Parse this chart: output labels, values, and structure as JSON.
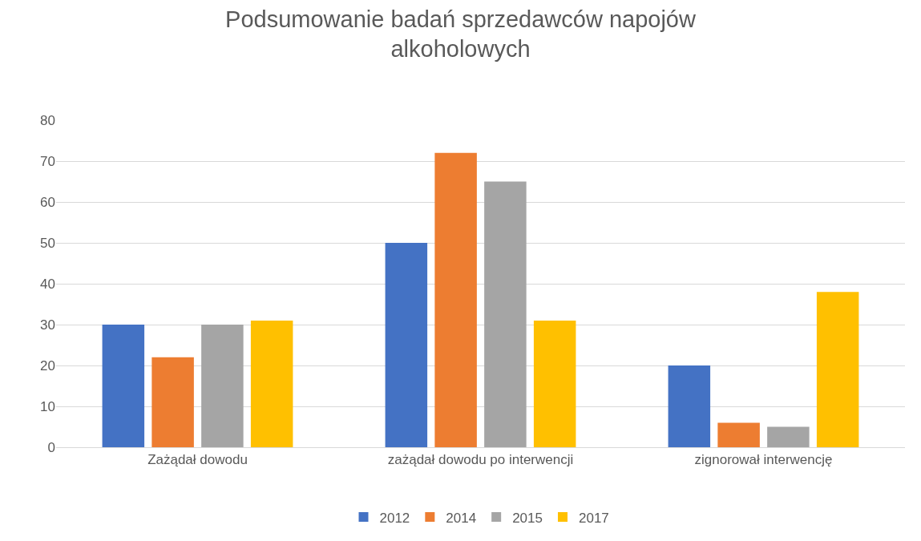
{
  "chart_data": {
    "type": "bar",
    "title": "Podsumowanie badań sprzedawców napojów\nalkoholowych",
    "categories": [
      "Zażądał dowodu",
      "zażądał dowodu po interwencji",
      "zignorował interwencję"
    ],
    "series": [
      {
        "name": "2012",
        "color": "#4472c4",
        "values": [
          30,
          50,
          20
        ]
      },
      {
        "name": "2014",
        "color": "#ed7d31",
        "values": [
          22,
          72,
          6
        ]
      },
      {
        "name": "2015",
        "color": "#a5a5a5",
        "values": [
          30,
          65,
          5
        ]
      },
      {
        "name": "2017",
        "color": "#ffc000",
        "values": [
          31,
          31,
          38
        ]
      }
    ],
    "ylim": [
      0,
      80
    ],
    "yticks": [
      0,
      10,
      20,
      30,
      40,
      50,
      60,
      70,
      80
    ],
    "grid": "y",
    "legend": "bottom"
  }
}
